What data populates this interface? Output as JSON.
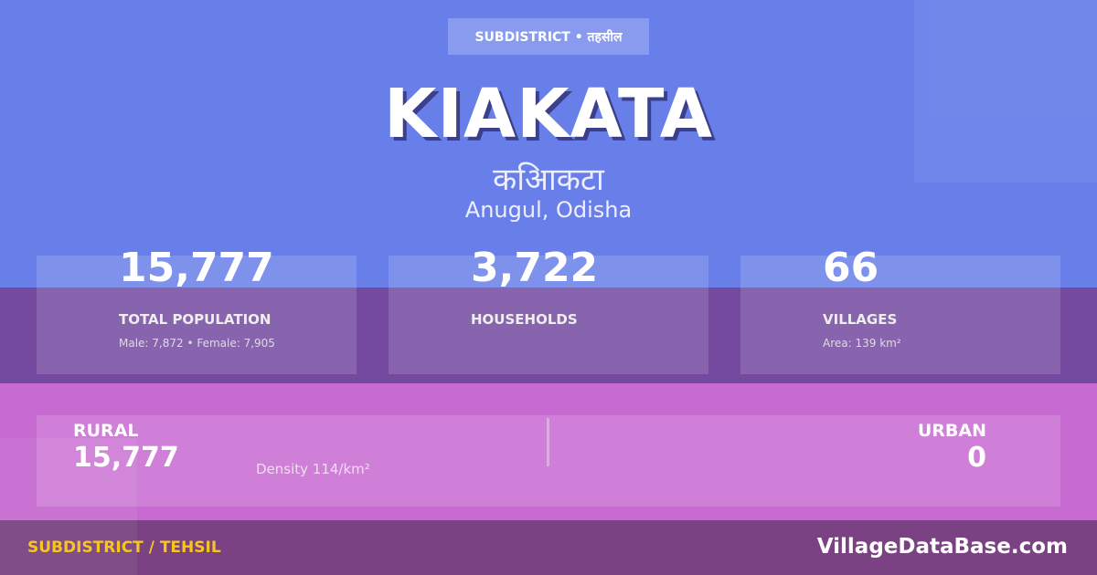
{
  "badge": "SUBDISTRICT • तहसील",
  "title": "KIAKATA",
  "title_hindi": "कआिकटा",
  "location": "Anugul, Odisha",
  "stats": [
    {
      "value": "15,777",
      "label": "TOTAL POPULATION",
      "sub": "Male: 7,872 • Female: 7,905"
    },
    {
      "value": "3,722",
      "label": "HOUSEHOLDS",
      "sub": ""
    },
    {
      "value": "66",
      "label": "VILLAGES",
      "sub": "Area: 139 km²"
    }
  ],
  "rural": {
    "label": "RURAL",
    "value": "15,777"
  },
  "urban": {
    "label": "URBAN",
    "value": "0"
  },
  "density": "Density 114/km²",
  "footer": {
    "type": "SUBDISTRICT / TEHSIL",
    "site": "VillageDataBase.com"
  },
  "colors": {
    "blue": "#687fe9",
    "purple": "#7449a0",
    "pink": "#c76bd2",
    "footer": "#7a4282",
    "accent": "#f7c520"
  }
}
